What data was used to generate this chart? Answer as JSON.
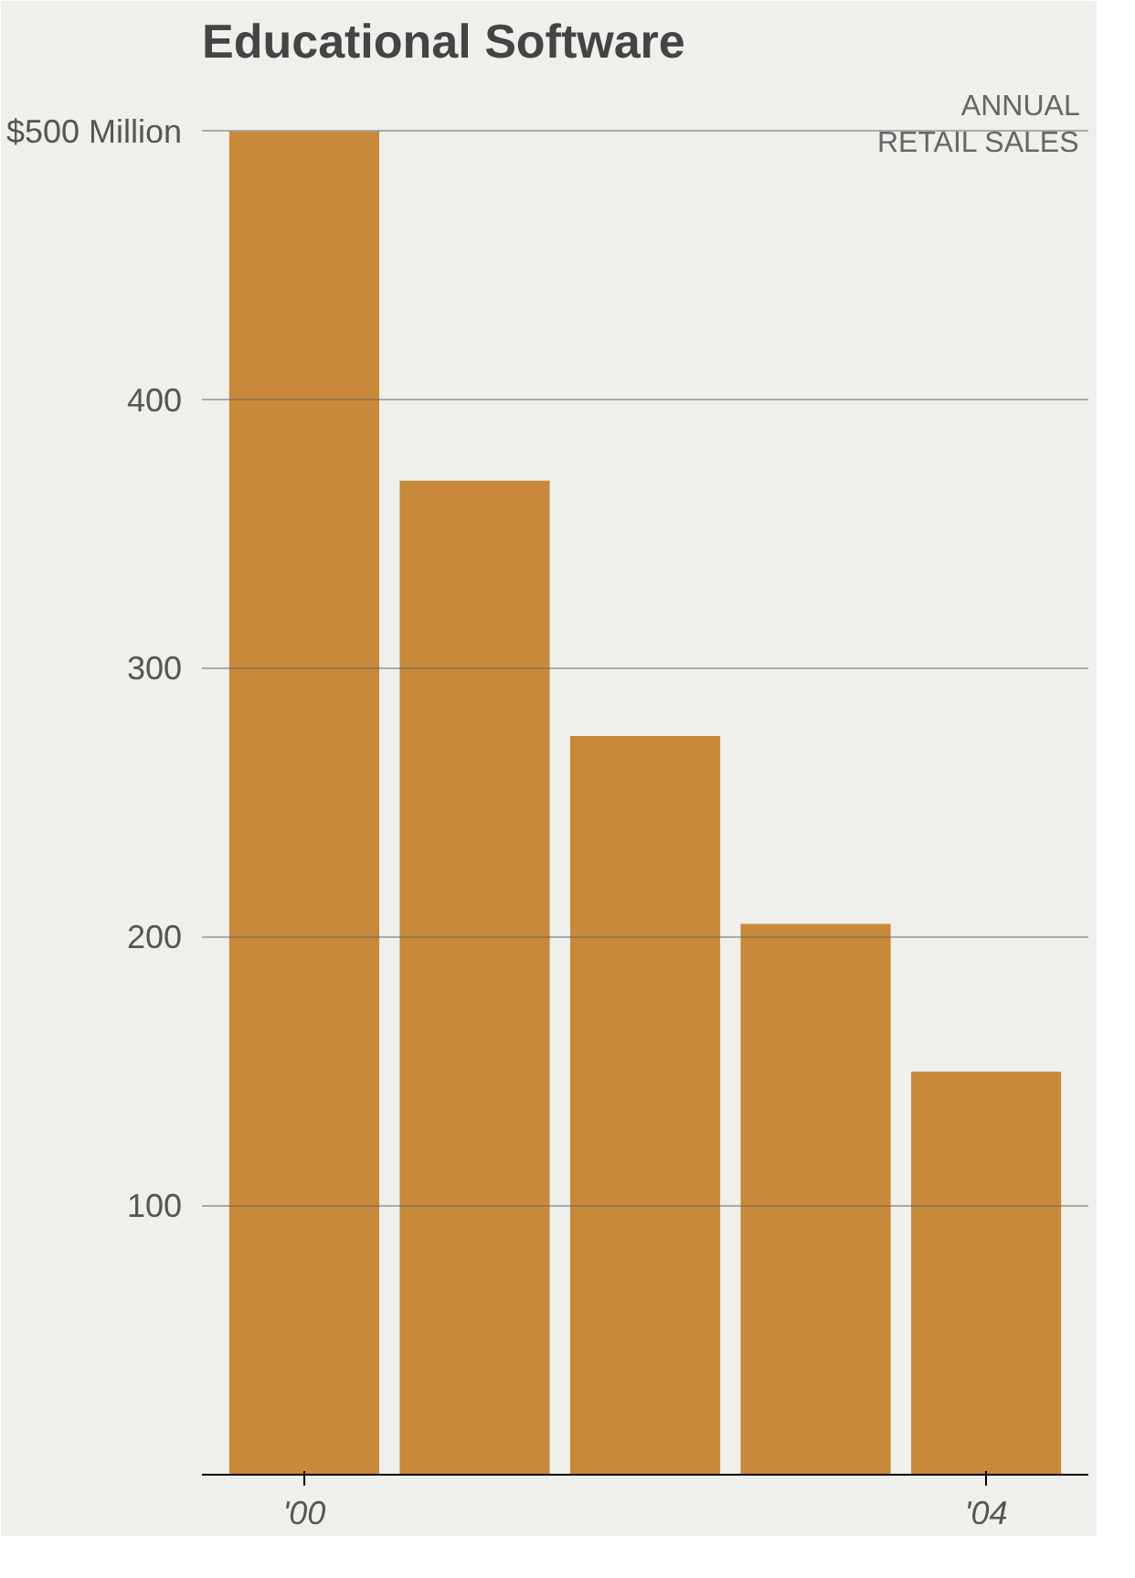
{
  "chart_data": {
    "type": "bar",
    "title": "Educational Software",
    "categories": [
      "'00",
      null,
      null,
      null,
      "'04"
    ],
    "values": [
      500,
      370,
      275,
      205,
      150
    ],
    "color": "#c8893b",
    "ylim": [
      0,
      520
    ],
    "yticks": [
      100,
      200,
      300,
      400,
      {
        "value": 500,
        "label": "$500 Million"
      }
    ],
    "grid": "y",
    "annotations": [
      "ANNUAL\nRETAIL SALES"
    ]
  }
}
